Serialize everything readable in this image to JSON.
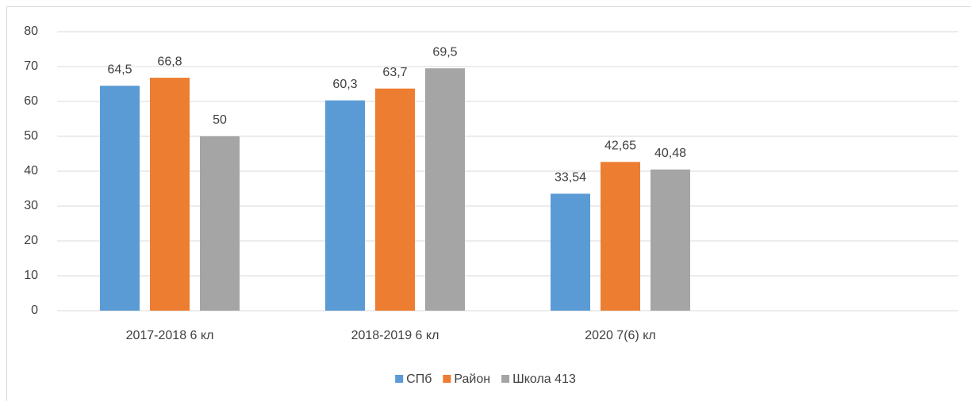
{
  "chart_data": {
    "type": "bar",
    "categories": [
      "2017-2018 6 кл",
      "2018-2019 6 кл",
      "2020 7(6) кл",
      null
    ],
    "series": [
      {
        "name": "СПб",
        "color": "#5b9bd5",
        "values": [
          64.5,
          60.3,
          33.54,
          null
        ],
        "value_labels": [
          "64,5",
          "60,3",
          "33,54",
          null
        ]
      },
      {
        "name": "Район",
        "color": "#ed7d31",
        "values": [
          66.8,
          63.7,
          42.65,
          null
        ],
        "value_labels": [
          "66,8",
          "63,7",
          "42,65",
          null
        ]
      },
      {
        "name": "Школа 413",
        "color": "#a5a5a5",
        "values": [
          50,
          69.5,
          40.48,
          null
        ],
        "value_labels": [
          "50",
          "69,5",
          "40,48",
          null
        ]
      }
    ],
    "ylim": [
      0,
      80
    ],
    "yticks": [
      0,
      10,
      20,
      30,
      40,
      50,
      60,
      70,
      80
    ],
    "grid": true,
    "legend": "bottom"
  }
}
